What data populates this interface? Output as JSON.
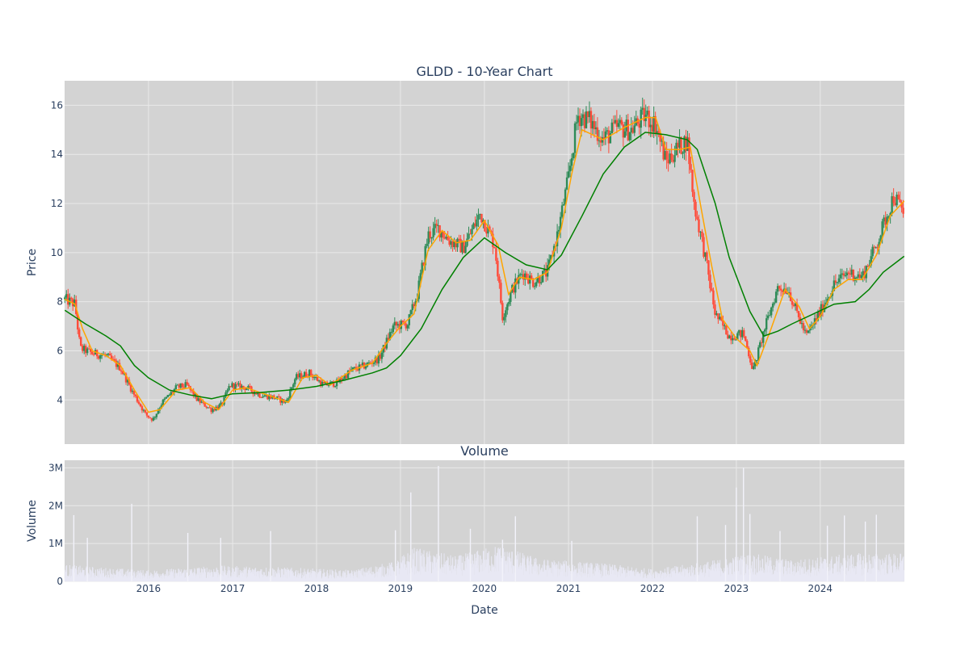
{
  "chart_data": [
    {
      "type": "candlestick",
      "title": "GLDD - 10-Year Chart",
      "xlabel": "",
      "ylabel": "Price",
      "ylim": [
        2.2,
        17.0
      ],
      "yticks": [
        4,
        6,
        8,
        10,
        12,
        14,
        16
      ],
      "x_range": [
        "2015-01-01",
        "2025-01-01"
      ],
      "grid": true,
      "legend": "none",
      "colors": {
        "background": "#d3d3d3",
        "grid": "#e9e9e9",
        "increasing": "#2e8b57",
        "decreasing": "#ff4b3a",
        "ma_short": "#ffa500",
        "ma_long": "#008000"
      },
      "close_points": [
        [
          "2015-01-02",
          8.1
        ],
        [
          "2015-02-15",
          7.9
        ],
        [
          "2015-03-10",
          6.1
        ],
        [
          "2015-05-01",
          5.9
        ],
        [
          "2015-07-01",
          5.8
        ],
        [
          "2015-09-01",
          5.3
        ],
        [
          "2015-10-25",
          4.3
        ],
        [
          "2015-12-20",
          3.4
        ],
        [
          "2016-01-20",
          3.2
        ],
        [
          "2016-03-01",
          3.9
        ],
        [
          "2016-05-01",
          4.5
        ],
        [
          "2016-06-15",
          4.6
        ],
        [
          "2016-08-01",
          4.0
        ],
        [
          "2016-10-01",
          3.6
        ],
        [
          "2016-11-15",
          3.8
        ],
        [
          "2016-12-20",
          4.6
        ],
        [
          "2017-03-01",
          4.5
        ],
        [
          "2017-05-01",
          4.2
        ],
        [
          "2017-07-01",
          4.1
        ],
        [
          "2017-08-20",
          3.9
        ],
        [
          "2017-10-01",
          4.9
        ],
        [
          "2017-12-01",
          5.1
        ],
        [
          "2018-02-01",
          4.6
        ],
        [
          "2018-04-01",
          4.7
        ],
        [
          "2018-06-01",
          5.2
        ],
        [
          "2018-08-01",
          5.4
        ],
        [
          "2018-10-01",
          5.7
        ],
        [
          "2018-12-01",
          7.0
        ],
        [
          "2019-02-01",
          7.1
        ],
        [
          "2019-03-15",
          8.3
        ],
        [
          "2019-05-01",
          10.7
        ],
        [
          "2019-06-15",
          11.0
        ],
        [
          "2019-08-01",
          10.5
        ],
        [
          "2019-10-01",
          10.2
        ],
        [
          "2019-12-15",
          11.6
        ],
        [
          "2020-02-15",
          10.3
        ],
        [
          "2020-03-20",
          7.4
        ],
        [
          "2020-05-01",
          8.5
        ],
        [
          "2020-06-15",
          9.2
        ],
        [
          "2020-08-01",
          8.8
        ],
        [
          "2020-10-01",
          9.2
        ],
        [
          "2020-11-15",
          10.8
        ],
        [
          "2020-12-31",
          13.0
        ],
        [
          "2021-02-10",
          15.6
        ],
        [
          "2021-04-01",
          15.4
        ],
        [
          "2021-06-01",
          14.6
        ],
        [
          "2021-08-01",
          15.1
        ],
        [
          "2021-10-01",
          15.0
        ],
        [
          "2021-12-01",
          15.6
        ],
        [
          "2022-01-15",
          15.2
        ],
        [
          "2022-03-01",
          13.7
        ],
        [
          "2022-04-15",
          14.2
        ],
        [
          "2022-06-01",
          14.6
        ],
        [
          "2022-07-01",
          12.0
        ],
        [
          "2022-08-15",
          10.0
        ],
        [
          "2022-10-01",
          7.5
        ],
        [
          "2022-12-01",
          6.6
        ],
        [
          "2023-02-01",
          6.7
        ],
        [
          "2023-03-15",
          5.2
        ],
        [
          "2023-05-01",
          6.8
        ],
        [
          "2023-07-01",
          8.6
        ],
        [
          "2023-08-15",
          8.5
        ],
        [
          "2023-09-15",
          7.7
        ],
        [
          "2023-11-01",
          6.6
        ],
        [
          "2024-01-01",
          7.6
        ],
        [
          "2024-03-01",
          8.7
        ],
        [
          "2024-05-01",
          9.2
        ],
        [
          "2024-07-01",
          9.0
        ],
        [
          "2024-09-01",
          10.3
        ],
        [
          "2024-11-15",
          12.3
        ],
        [
          "2024-12-31",
          11.6
        ]
      ],
      "moving_averages": [
        {
          "points": [
            [
              "2015-01-02",
              8.1
            ],
            [
              "2015-02-15",
              7.9
            ],
            [
              "2015-03-20",
              6.9
            ],
            [
              "2015-05-01",
              6.0
            ],
            [
              "2015-07-01",
              5.8
            ],
            [
              "2015-09-01",
              5.4
            ],
            [
              "2015-11-01",
              4.4
            ],
            [
              "2016-01-01",
              3.5
            ],
            [
              "2016-02-20",
              3.6
            ],
            [
              "2016-05-01",
              4.4
            ],
            [
              "2016-07-01",
              4.5
            ],
            [
              "2016-09-01",
              3.9
            ],
            [
              "2016-11-01",
              3.6
            ],
            [
              "2017-01-01",
              4.4
            ],
            [
              "2017-03-01",
              4.5
            ],
            [
              "2017-06-01",
              4.2
            ],
            [
              "2017-09-01",
              3.9
            ],
            [
              "2017-11-01",
              4.9
            ],
            [
              "2018-01-01",
              5.0
            ],
            [
              "2018-03-01",
              4.6
            ],
            [
              "2018-06-01",
              5.2
            ],
            [
              "2018-09-01",
              5.5
            ],
            [
              "2018-11-01",
              6.3
            ],
            [
              "2019-01-01",
              7.0
            ],
            [
              "2019-03-01",
              7.5
            ],
            [
              "2019-05-01",
              10.1
            ],
            [
              "2019-07-01",
              10.9
            ],
            [
              "2019-09-01",
              10.4
            ],
            [
              "2019-11-01",
              10.5
            ],
            [
              "2020-01-01",
              11.3
            ],
            [
              "2020-03-01",
              10.3
            ],
            [
              "2020-04-15",
              8.3
            ],
            [
              "2020-06-01",
              9.0
            ],
            [
              "2020-08-01",
              8.9
            ],
            [
              "2020-10-01",
              9.2
            ],
            [
              "2020-12-01",
              11.0
            ],
            [
              "2021-01-15",
              13.2
            ],
            [
              "2021-03-01",
              15.0
            ],
            [
              "2021-06-01",
              14.6
            ],
            [
              "2021-09-01",
              15.1
            ],
            [
              "2021-12-01",
              15.5
            ],
            [
              "2022-01-15",
              15.5
            ],
            [
              "2022-03-01",
              14.2
            ],
            [
              "2022-05-01",
              14.2
            ],
            [
              "2022-06-15",
              14.3
            ],
            [
              "2022-08-01",
              11.8
            ],
            [
              "2022-09-15",
              9.5
            ],
            [
              "2022-11-01",
              7.3
            ],
            [
              "2023-01-01",
              6.5
            ],
            [
              "2023-03-01",
              6.0
            ],
            [
              "2023-04-01",
              5.4
            ],
            [
              "2023-06-01",
              6.9
            ],
            [
              "2023-08-01",
              8.5
            ],
            [
              "2023-10-01",
              7.8
            ],
            [
              "2023-11-15",
              6.9
            ],
            [
              "2024-01-01",
              7.4
            ],
            [
              "2024-03-01",
              8.5
            ],
            [
              "2024-05-01",
              8.9
            ],
            [
              "2024-07-01",
              8.9
            ],
            [
              "2024-09-01",
              9.9
            ],
            [
              "2024-11-01",
              11.5
            ],
            [
              "2024-12-31",
              12.1
            ]
          ]
        },
        {
          "points": [
            [
              "2015-01-02",
              7.65
            ],
            [
              "2015-04-01",
              7.1
            ],
            [
              "2015-07-01",
              6.6
            ],
            [
              "2015-09-01",
              6.2
            ],
            [
              "2015-11-01",
              5.4
            ],
            [
              "2016-01-01",
              4.9
            ],
            [
              "2016-04-01",
              4.4
            ],
            [
              "2016-07-01",
              4.2
            ],
            [
              "2016-10-01",
              4.05
            ],
            [
              "2017-01-01",
              4.25
            ],
            [
              "2017-05-01",
              4.3
            ],
            [
              "2017-09-01",
              4.4
            ],
            [
              "2018-01-01",
              4.55
            ],
            [
              "2018-05-01",
              4.8
            ],
            [
              "2018-09-01",
              5.1
            ],
            [
              "2018-11-01",
              5.3
            ],
            [
              "2019-01-01",
              5.8
            ],
            [
              "2019-04-01",
              6.9
            ],
            [
              "2019-07-01",
              8.5
            ],
            [
              "2019-10-01",
              9.8
            ],
            [
              "2020-01-01",
              10.6
            ],
            [
              "2020-04-01",
              10.0
            ],
            [
              "2020-07-01",
              9.5
            ],
            [
              "2020-10-01",
              9.3
            ],
            [
              "2020-12-01",
              9.9
            ],
            [
              "2021-03-01",
              11.5
            ],
            [
              "2021-06-01",
              13.2
            ],
            [
              "2021-09-01",
              14.3
            ],
            [
              "2021-12-01",
              14.9
            ],
            [
              "2022-03-01",
              14.8
            ],
            [
              "2022-06-01",
              14.6
            ],
            [
              "2022-07-15",
              14.2
            ],
            [
              "2022-10-01",
              12.0
            ],
            [
              "2022-12-01",
              9.8
            ],
            [
              "2023-03-01",
              7.6
            ],
            [
              "2023-05-01",
              6.6
            ],
            [
              "2023-07-01",
              6.8
            ],
            [
              "2023-09-01",
              7.1
            ],
            [
              "2023-12-01",
              7.5
            ],
            [
              "2024-03-01",
              7.9
            ],
            [
              "2024-06-01",
              8.0
            ],
            [
              "2024-08-01",
              8.5
            ],
            [
              "2024-10-01",
              9.2
            ],
            [
              "2024-12-31",
              9.85
            ]
          ]
        }
      ]
    },
    {
      "type": "bar",
      "title": "Volume",
      "xlabel": "Date",
      "ylabel": "Volume",
      "ylim": [
        0,
        3200000
      ],
      "yticks": [
        0,
        1000000,
        2000000,
        3000000
      ],
      "ytick_labels": [
        "0",
        "1M",
        "2M",
        "3M"
      ],
      "x_range": [
        "2015-01-01",
        "2025-01-01"
      ],
      "xticks": [
        "2016",
        "2017",
        "2018",
        "2019",
        "2020",
        "2021",
        "2022",
        "2023",
        "2024"
      ],
      "grid": true,
      "colors": {
        "background": "#d3d3d3",
        "grid": "#e9e9e9",
        "bar": "#e8e8f4"
      },
      "baseline_points": [
        [
          "2015-01-01",
          300000
        ],
        [
          "2015-06-01",
          250000
        ],
        [
          "2016-01-01",
          200000
        ],
        [
          "2016-11-01",
          280000
        ],
        [
          "2017-06-01",
          260000
        ],
        [
          "2018-06-01",
          200000
        ],
        [
          "2018-12-01",
          350000
        ],
        [
          "2019-03-01",
          600000
        ],
        [
          "2019-09-01",
          450000
        ],
        [
          "2020-03-01",
          650000
        ],
        [
          "2020-09-01",
          400000
        ],
        [
          "2021-06-01",
          320000
        ],
        [
          "2022-01-01",
          220000
        ],
        [
          "2022-06-01",
          300000
        ],
        [
          "2022-10-01",
          380000
        ],
        [
          "2023-03-01",
          500000
        ],
        [
          "2023-09-01",
          380000
        ],
        [
          "2024-06-01",
          500000
        ],
        [
          "2024-12-31",
          500000
        ]
      ],
      "spikes": [
        [
          "2015-02-10",
          1750000
        ],
        [
          "2015-04-10",
          1150000
        ],
        [
          "2015-10-20",
          2050000
        ],
        [
          "2016-06-20",
          1280000
        ],
        [
          "2016-11-10",
          1150000
        ],
        [
          "2017-06-15",
          1330000
        ],
        [
          "2018-12-10",
          1350000
        ],
        [
          "2019-02-15",
          2350000
        ],
        [
          "2019-06-15",
          3050000
        ],
        [
          "2019-11-01",
          1390000
        ],
        [
          "2020-03-20",
          1100000
        ],
        [
          "2020-05-15",
          1720000
        ],
        [
          "2021-01-15",
          1070000
        ],
        [
          "2022-07-15",
          1720000
        ],
        [
          "2022-11-15",
          1490000
        ],
        [
          "2023-01-01",
          2480000
        ],
        [
          "2023-02-01",
          3000000
        ],
        [
          "2023-03-01",
          1780000
        ],
        [
          "2023-07-10",
          1330000
        ],
        [
          "2024-02-01",
          1470000
        ],
        [
          "2024-04-15",
          1740000
        ],
        [
          "2024-07-15",
          1580000
        ],
        [
          "2024-09-01",
          1760000
        ]
      ]
    }
  ]
}
